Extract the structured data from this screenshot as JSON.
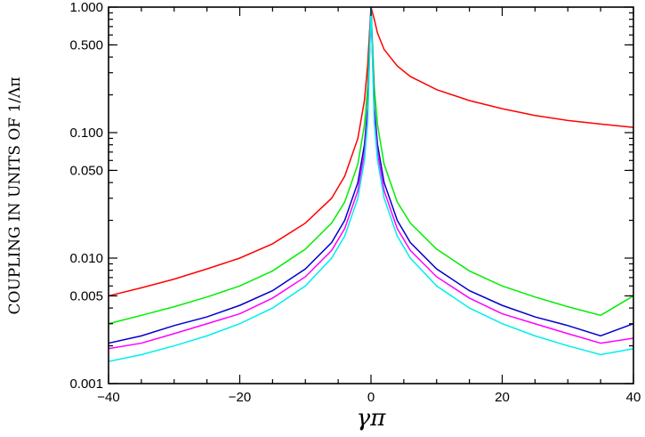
{
  "chart_data": {
    "type": "line",
    "xlabel": "γπ",
    "ylabel": "COUPLING IN UNITS OF 1/Λπ",
    "xlim": [
      -40,
      40
    ],
    "ylim": [
      0.001,
      1.0
    ],
    "yscale": "log",
    "grid": false,
    "legend": "none",
    "x_ticks": [
      {
        "value": -40,
        "label": "−40"
      },
      {
        "value": -20,
        "label": "−20"
      },
      {
        "value": 0,
        "label": "0"
      },
      {
        "value": 20,
        "label": "20"
      },
      {
        "value": 40,
        "label": "40"
      }
    ],
    "y_ticks": [
      {
        "value": 1.0,
        "label": "1.000"
      },
      {
        "value": 0.5,
        "label": "0.500"
      },
      {
        "value": 0.1,
        "label": "0.100"
      },
      {
        "value": 0.05,
        "label": "0.050"
      },
      {
        "value": 0.01,
        "label": "0.010"
      },
      {
        "value": 0.005,
        "label": "0.005"
      },
      {
        "value": 0.001,
        "label": "0.001"
      }
    ],
    "series": [
      {
        "color": "#ff0000",
        "x": [
          -40,
          -35,
          -30,
          -25,
          -20,
          -15,
          -10,
          -6,
          -4,
          -2,
          -1,
          -0.5,
          0,
          0.5,
          1,
          2,
          4,
          6,
          10,
          15,
          20,
          25,
          30,
          35,
          40
        ],
        "y": [
          0.005,
          0.0058,
          0.0068,
          0.0082,
          0.01,
          0.013,
          0.019,
          0.03,
          0.045,
          0.09,
          0.18,
          0.35,
          1.0,
          0.8,
          0.62,
          0.46,
          0.34,
          0.28,
          0.22,
          0.18,
          0.155,
          0.137,
          0.125,
          0.117,
          0.11
        ]
      },
      {
        "color": "#00ee00",
        "x": [
          -40,
          -35,
          -30,
          -25,
          -20,
          -15,
          -10,
          -6,
          -4,
          -2,
          -1,
          -0.5,
          0,
          0.5,
          1,
          2,
          4,
          6,
          10,
          15,
          20,
          25,
          30,
          35,
          40
        ],
        "y": [
          0.003,
          0.0035,
          0.0041,
          0.0049,
          0.006,
          0.0079,
          0.0118,
          0.019,
          0.028,
          0.056,
          0.115,
          0.23,
          1.0,
          0.23,
          0.115,
          0.056,
          0.028,
          0.019,
          0.0118,
          0.0079,
          0.006,
          0.0049,
          0.0041,
          0.0035,
          0.005
        ]
      },
      {
        "color": "#0000cc",
        "x": [
          -40,
          -35,
          -30,
          -25,
          -20,
          -15,
          -10,
          -6,
          -4,
          -2,
          -1,
          -0.5,
          0,
          0.5,
          1,
          2,
          4,
          6,
          10,
          15,
          20,
          25,
          30,
          35,
          40
        ],
        "y": [
          0.0021,
          0.0024,
          0.0029,
          0.0034,
          0.0042,
          0.0055,
          0.0082,
          0.0133,
          0.02,
          0.04,
          0.08,
          0.16,
          1.0,
          0.16,
          0.08,
          0.04,
          0.02,
          0.0133,
          0.0082,
          0.0055,
          0.0042,
          0.0034,
          0.0029,
          0.0024,
          0.003
        ]
      },
      {
        "color": "#ff00ff",
        "x": [
          -40,
          -35,
          -30,
          -25,
          -20,
          -15,
          -10,
          -6,
          -4,
          -2,
          -1,
          -0.5,
          0,
          0.5,
          1,
          2,
          4,
          6,
          10,
          15,
          20,
          25,
          30,
          35,
          40
        ],
        "y": [
          0.0019,
          0.0021,
          0.0025,
          0.003,
          0.0036,
          0.0048,
          0.0071,
          0.0115,
          0.0172,
          0.0344,
          0.069,
          0.138,
          1.0,
          0.138,
          0.069,
          0.0344,
          0.0172,
          0.0115,
          0.0071,
          0.0048,
          0.0036,
          0.003,
          0.0025,
          0.0021,
          0.0023
        ]
      },
      {
        "color": "#00eeee",
        "x": [
          -40,
          -35,
          -30,
          -25,
          -20,
          -15,
          -10,
          -6,
          -4,
          -2,
          -1,
          -0.5,
          0,
          0.5,
          1,
          2,
          4,
          6,
          10,
          15,
          20,
          25,
          30,
          35,
          40
        ],
        "y": [
          0.0015,
          0.0017,
          0.002,
          0.0024,
          0.003,
          0.004,
          0.006,
          0.01,
          0.015,
          0.03,
          0.06,
          0.12,
          1.0,
          0.12,
          0.06,
          0.03,
          0.015,
          0.01,
          0.006,
          0.004,
          0.003,
          0.0024,
          0.002,
          0.0017,
          0.0019
        ]
      }
    ]
  }
}
